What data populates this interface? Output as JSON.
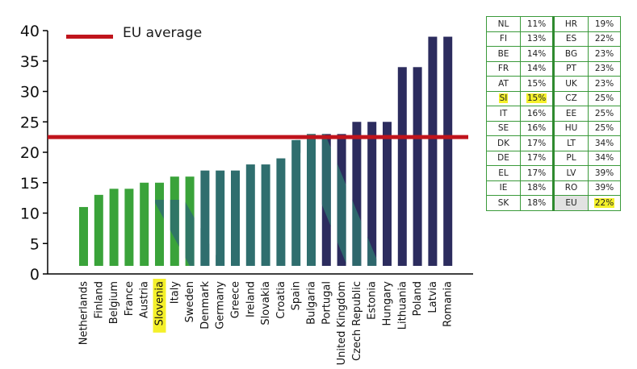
{
  "chart_data": {
    "type": "bar",
    "categories": [
      "Netherlands",
      "Finland",
      "Belgium",
      "France",
      "Austria",
      "Slovenia",
      "Italy",
      "Sweden",
      "Denmark",
      "Germany",
      "Greece",
      "Ireland",
      "Slovakia",
      "Croatia",
      "Spain",
      "Bulgaria",
      "Portugal",
      "United Kingdom",
      "Czech Republic",
      "Estonia",
      "Hungary",
      "Lithuania",
      "Poland",
      "Latvia",
      "Romania"
    ],
    "values": [
      11,
      13,
      14,
      14,
      15,
      15,
      16,
      16,
      17,
      17,
      17,
      18,
      18,
      19,
      22,
      23,
      23,
      23,
      25,
      25,
      25,
      34,
      34,
      39,
      39
    ],
    "yticks": [
      0,
      5,
      10,
      15,
      20,
      25,
      30,
      35,
      40
    ],
    "ylim": [
      0,
      40
    ],
    "highlight_category": "Slovenia",
    "reference_line": {
      "label": "EU average",
      "value": 22.5,
      "color": "#c0141c"
    },
    "legend_position": "top-left",
    "grid": false,
    "colors": {
      "green": "#3aa33a",
      "teal": "#2f6e6e",
      "navy": "#2c2c5e",
      "highlight": "#f4f02a"
    }
  },
  "table": {
    "rows": [
      {
        "c1": "NL",
        "p1": "11%",
        "c2": "HR",
        "p2": "19%"
      },
      {
        "c1": "FI",
        "p1": "13%",
        "c2": "ES",
        "p2": "22%"
      },
      {
        "c1": "BE",
        "p1": "14%",
        "c2": "BG",
        "p2": "23%"
      },
      {
        "c1": "FR",
        "p1": "14%",
        "c2": "PT",
        "p2": "23%"
      },
      {
        "c1": "AT",
        "p1": "15%",
        "c2": "UK",
        "p2": "23%"
      },
      {
        "c1": "SI",
        "p1": "15%",
        "c2": "CZ",
        "p2": "25%"
      },
      {
        "c1": "IT",
        "p1": "16%",
        "c2": "EE",
        "p2": "25%"
      },
      {
        "c1": "SE",
        "p1": "16%",
        "c2": "HU",
        "p2": "25%"
      },
      {
        "c1": "DK",
        "p1": "17%",
        "c2": "LT",
        "p2": "34%"
      },
      {
        "c1": "DE",
        "p1": "17%",
        "c2": "PL",
        "p2": "34%"
      },
      {
        "c1": "EL",
        "p1": "17%",
        "c2": "LV",
        "p2": "39%"
      },
      {
        "c1": "IE",
        "p1": "18%",
        "c2": "RO",
        "p2": "39%"
      },
      {
        "c1": "SK",
        "p1": "18%",
        "c2": "EU",
        "p2": "22%"
      }
    ]
  }
}
